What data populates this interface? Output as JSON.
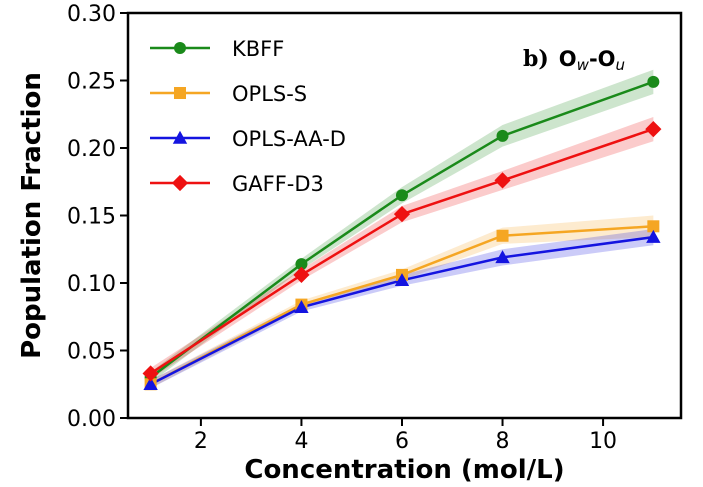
{
  "chart_data": {
    "type": "line",
    "title": "",
    "xlabel": "Concentration (mol/L)",
    "ylabel": "Population Fraction",
    "xlim": [
      0.55,
      11.55
    ],
    "ylim": [
      0.0,
      0.3
    ],
    "xticks": [
      2,
      4,
      6,
      8,
      10
    ],
    "yticks": [
      0.0,
      0.05,
      0.1,
      0.15,
      0.2,
      0.25,
      0.3
    ],
    "xtick_labels": [
      "2",
      "4",
      "6",
      "8",
      "10"
    ],
    "ytick_labels": [
      "0.00",
      "0.05",
      "0.10",
      "0.15",
      "0.20",
      "0.25",
      "0.30"
    ],
    "grid": false,
    "legend_position": "top-left",
    "annotation": {
      "prefix": "b)",
      "o1": "O",
      "sub1": "w",
      "dash": "-",
      "o2": "O",
      "sub2": "u"
    },
    "x": [
      1,
      4,
      6,
      8,
      11
    ],
    "series": [
      {
        "name": "KBFF",
        "color": "#1a8a1a",
        "marker": "circle",
        "values": [
          0.03,
          0.114,
          0.165,
          0.209,
          0.249
        ],
        "band": [
          0.004,
          0.004,
          0.006,
          0.008,
          0.009
        ]
      },
      {
        "name": "OPLS-S",
        "color": "#f5a623",
        "marker": "square",
        "values": [
          0.025,
          0.084,
          0.106,
          0.135,
          0.142
        ],
        "band": [
          0.003,
          0.003,
          0.004,
          0.006,
          0.008
        ]
      },
      {
        "name": "OPLS-AA-D",
        "color": "#1414e0",
        "marker": "triangle",
        "values": [
          0.025,
          0.082,
          0.102,
          0.119,
          0.134
        ],
        "band": [
          0.003,
          0.003,
          0.004,
          0.006,
          0.006
        ]
      },
      {
        "name": "GAFF-D3",
        "color": "#ee1111",
        "marker": "diamond",
        "values": [
          0.033,
          0.106,
          0.151,
          0.176,
          0.214
        ],
        "band": [
          0.004,
          0.004,
          0.006,
          0.007,
          0.009
        ]
      }
    ]
  }
}
